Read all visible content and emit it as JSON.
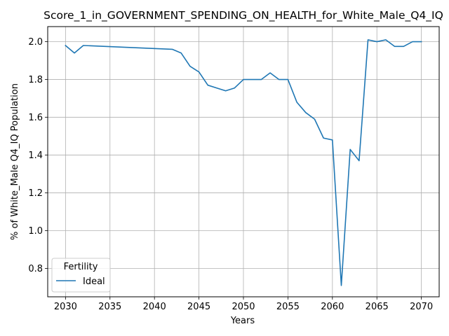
{
  "chart_data": {
    "type": "line",
    "title": "Score_1_in_GOVERNMENT_SPENDING_ON_HEALTH_for_White_Male_Q4_IQ",
    "xlabel": "Years",
    "ylabel": "% of White_Male Q4_IQ Population",
    "xlim": [
      2028,
      2072
    ],
    "ylim": [
      0.65,
      2.08
    ],
    "xticks": [
      2030,
      2035,
      2040,
      2045,
      2050,
      2055,
      2060,
      2065,
      2070
    ],
    "yticks": [
      0.8,
      1.0,
      1.2,
      1.4,
      1.6,
      1.8,
      2.0
    ],
    "ytick_labels": [
      "0.8",
      "1.0",
      "1.2",
      "1.4",
      "1.6",
      "1.8",
      "2.0"
    ],
    "grid": true,
    "legend": {
      "title": "Fertility",
      "placement": "lower-left"
    },
    "series": [
      {
        "name": "Ideal",
        "color": "#1f77b4",
        "x": [
          2030,
          2031,
          2032,
          2042,
          2043,
          2044,
          2045,
          2046,
          2047,
          2048,
          2049,
          2050,
          2051,
          2052,
          2053,
          2054,
          2055,
          2056,
          2057,
          2058,
          2059,
          2060,
          2061,
          2062,
          2063,
          2064,
          2065,
          2066,
          2067,
          2068,
          2069,
          2070
        ],
        "values": [
          1.98,
          1.94,
          1.98,
          1.96,
          1.94,
          1.87,
          1.84,
          1.77,
          1.755,
          1.74,
          1.755,
          1.8,
          1.8,
          1.8,
          1.835,
          1.8,
          1.8,
          1.68,
          1.625,
          1.59,
          1.49,
          1.48,
          0.71,
          1.43,
          1.37,
          2.01,
          2.0,
          2.01,
          1.975,
          1.975,
          2.0,
          2.0
        ]
      }
    ]
  }
}
